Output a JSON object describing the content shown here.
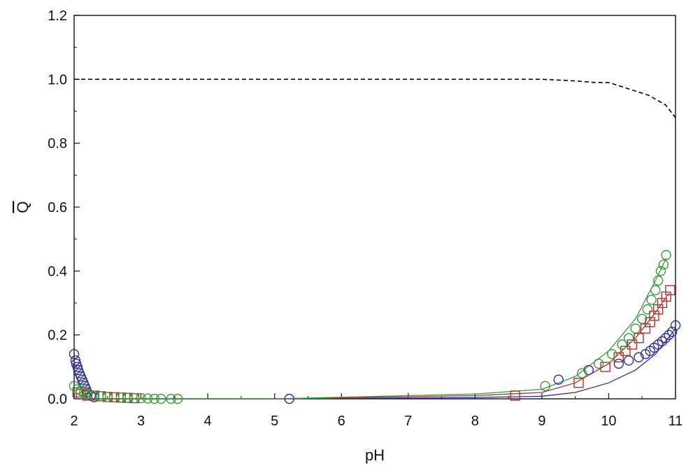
{
  "chart_data": {
    "type": "scatter",
    "xlabel": "pH",
    "ylabel": "Q",
    "ylabel_overbar": true,
    "xlim": [
      2,
      11
    ],
    "ylim": [
      0,
      1.2
    ],
    "x_ticks": [
      "2",
      "3",
      "4",
      "5",
      "6",
      "7",
      "8",
      "9",
      "10",
      "11"
    ],
    "y_ticks": [
      "0.0",
      "0.2",
      "0.4",
      "0.6",
      "0.8",
      "1.0",
      "1.2"
    ],
    "grid": false,
    "legend": "none",
    "series": [
      {
        "color": "#2e2e9a",
        "marker": "circle",
        "points": [
          [
            2.0,
            0.14
          ],
          [
            2.02,
            0.12
          ],
          [
            2.03,
            0.11
          ],
          [
            2.05,
            0.1
          ],
          [
            2.06,
            0.09
          ],
          [
            2.08,
            0.08
          ],
          [
            2.1,
            0.07
          ],
          [
            2.12,
            0.06
          ],
          [
            2.14,
            0.05
          ],
          [
            2.16,
            0.04
          ],
          [
            2.18,
            0.03
          ],
          [
            2.2,
            0.02
          ],
          [
            2.25,
            0.01
          ],
          [
            2.3,
            0.005
          ],
          [
            5.22,
            0.0
          ],
          [
            9.25,
            0.06
          ],
          [
            9.7,
            0.09
          ],
          [
            10.15,
            0.11
          ],
          [
            10.3,
            0.12
          ],
          [
            10.45,
            0.13
          ],
          [
            10.55,
            0.14
          ],
          [
            10.62,
            0.15
          ],
          [
            10.68,
            0.16
          ],
          [
            10.74,
            0.17
          ],
          [
            10.8,
            0.18
          ],
          [
            10.85,
            0.19
          ],
          [
            10.9,
            0.2
          ],
          [
            10.95,
            0.21
          ],
          [
            11.0,
            0.23
          ]
        ]
      },
      {
        "color": "#b03030",
        "marker": "square",
        "points": [
          [
            2.05,
            0.02
          ],
          [
            2.1,
            0.015
          ],
          [
            2.2,
            0.01
          ],
          [
            2.3,
            0.01
          ],
          [
            2.4,
            0.008
          ],
          [
            2.5,
            0.006
          ],
          [
            2.6,
            0.005
          ],
          [
            2.7,
            0.004
          ],
          [
            2.8,
            0.003
          ],
          [
            2.9,
            0.002
          ],
          [
            8.6,
            0.01
          ],
          [
            9.55,
            0.05
          ],
          [
            9.95,
            0.1
          ],
          [
            10.15,
            0.13
          ],
          [
            10.25,
            0.15
          ],
          [
            10.35,
            0.17
          ],
          [
            10.45,
            0.19
          ],
          [
            10.55,
            0.22
          ],
          [
            10.62,
            0.24
          ],
          [
            10.68,
            0.26
          ],
          [
            10.74,
            0.28
          ],
          [
            10.8,
            0.3
          ],
          [
            10.86,
            0.32
          ],
          [
            10.92,
            0.34
          ]
        ]
      },
      {
        "color": "#3a9a3a",
        "marker": "circle",
        "points": [
          [
            2.0,
            0.04
          ],
          [
            2.05,
            0.03
          ],
          [
            2.1,
            0.025
          ],
          [
            2.15,
            0.02
          ],
          [
            2.2,
            0.015
          ],
          [
            2.3,
            0.01
          ],
          [
            2.4,
            0.008
          ],
          [
            2.5,
            0.006
          ],
          [
            2.6,
            0.005
          ],
          [
            2.7,
            0.004
          ],
          [
            2.8,
            0.003
          ],
          [
            2.9,
            0.002
          ],
          [
            3.0,
            0.002
          ],
          [
            3.1,
            0.001
          ],
          [
            3.2,
            0.0
          ],
          [
            3.3,
            0.0
          ],
          [
            3.45,
            0.0
          ],
          [
            3.55,
            0.0
          ],
          [
            9.05,
            0.04
          ],
          [
            9.6,
            0.08
          ],
          [
            9.85,
            0.11
          ],
          [
            10.05,
            0.14
          ],
          [
            10.2,
            0.17
          ],
          [
            10.3,
            0.19
          ],
          [
            10.4,
            0.22
          ],
          [
            10.5,
            0.25
          ],
          [
            10.58,
            0.28
          ],
          [
            10.64,
            0.31
          ],
          [
            10.7,
            0.34
          ],
          [
            10.74,
            0.37
          ],
          [
            10.78,
            0.4
          ],
          [
            10.82,
            0.42
          ],
          [
            10.86,
            0.45
          ]
        ]
      }
    ],
    "curves": [
      {
        "color": "#2e2e9a",
        "style": "solid",
        "points": [
          [
            2.0,
            0.0
          ],
          [
            5.0,
            0.0
          ],
          [
            8.0,
            0.004
          ],
          [
            9.0,
            0.008
          ],
          [
            9.5,
            0.02
          ],
          [
            10.0,
            0.05
          ],
          [
            10.4,
            0.09
          ],
          [
            10.7,
            0.14
          ],
          [
            11.0,
            0.22
          ]
        ]
      },
      {
        "color": "#b03030",
        "style": "solid",
        "points": [
          [
            2.0,
            0.0
          ],
          [
            5.0,
            0.0
          ],
          [
            8.0,
            0.01
          ],
          [
            9.0,
            0.02
          ],
          [
            9.5,
            0.05
          ],
          [
            10.0,
            0.11
          ],
          [
            10.4,
            0.19
          ],
          [
            10.7,
            0.27
          ],
          [
            10.9,
            0.33
          ]
        ]
      },
      {
        "color": "#3a9a3a",
        "style": "solid",
        "points": [
          [
            2.0,
            0.0
          ],
          [
            5.0,
            0.0
          ],
          [
            8.0,
            0.015
          ],
          [
            9.0,
            0.03
          ],
          [
            9.5,
            0.07
          ],
          [
            10.0,
            0.15
          ],
          [
            10.4,
            0.25
          ],
          [
            10.7,
            0.37
          ],
          [
            10.86,
            0.44
          ]
        ]
      },
      {
        "color": "#000000",
        "style": "dashed",
        "points": [
          [
            2.0,
            1.0
          ],
          [
            9.0,
            1.0
          ],
          [
            9.5,
            0.995
          ],
          [
            9.8,
            0.99
          ],
          [
            10.0,
            0.99
          ],
          [
            10.3,
            0.97
          ],
          [
            10.6,
            0.95
          ],
          [
            10.85,
            0.92
          ],
          [
            11.0,
            0.88
          ]
        ]
      }
    ]
  }
}
